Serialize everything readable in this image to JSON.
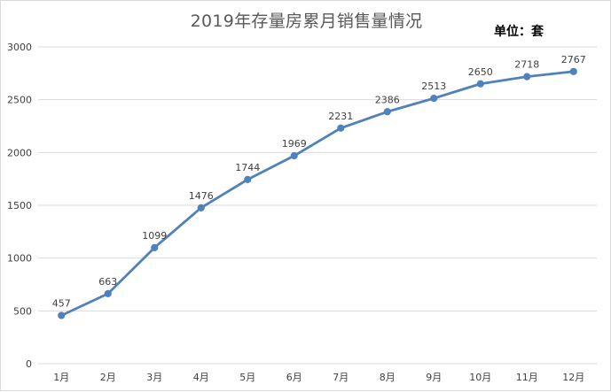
{
  "chart_data": {
    "type": "line",
    "title": "2019年存量房累月销售量情况",
    "unit_label": "单位：套",
    "categories": [
      "1月",
      "2月",
      "3月",
      "4月",
      "5月",
      "6月",
      "7月",
      "8月",
      "9月",
      "10月",
      "11月",
      "12月"
    ],
    "series": [
      {
        "values": [
          457,
          663,
          1099,
          1476,
          1744,
          1969,
          2231,
          2386,
          2513,
          2650,
          2718,
          2767
        ]
      }
    ],
    "data_labels": [
      "457",
      "663",
      "1099",
      "1476",
      "1744",
      "1969",
      "2231",
      "2386",
      "2513",
      "2650",
      "2718",
      "2767"
    ],
    "ylim": [
      0,
      3000
    ],
    "yticks": [
      "0",
      "500",
      "1000",
      "1500",
      "2000",
      "2500",
      "3000"
    ],
    "grid": true,
    "colors": {
      "line": "#4f81bd",
      "grid": "#d9d9d9",
      "text": "#404040"
    }
  }
}
